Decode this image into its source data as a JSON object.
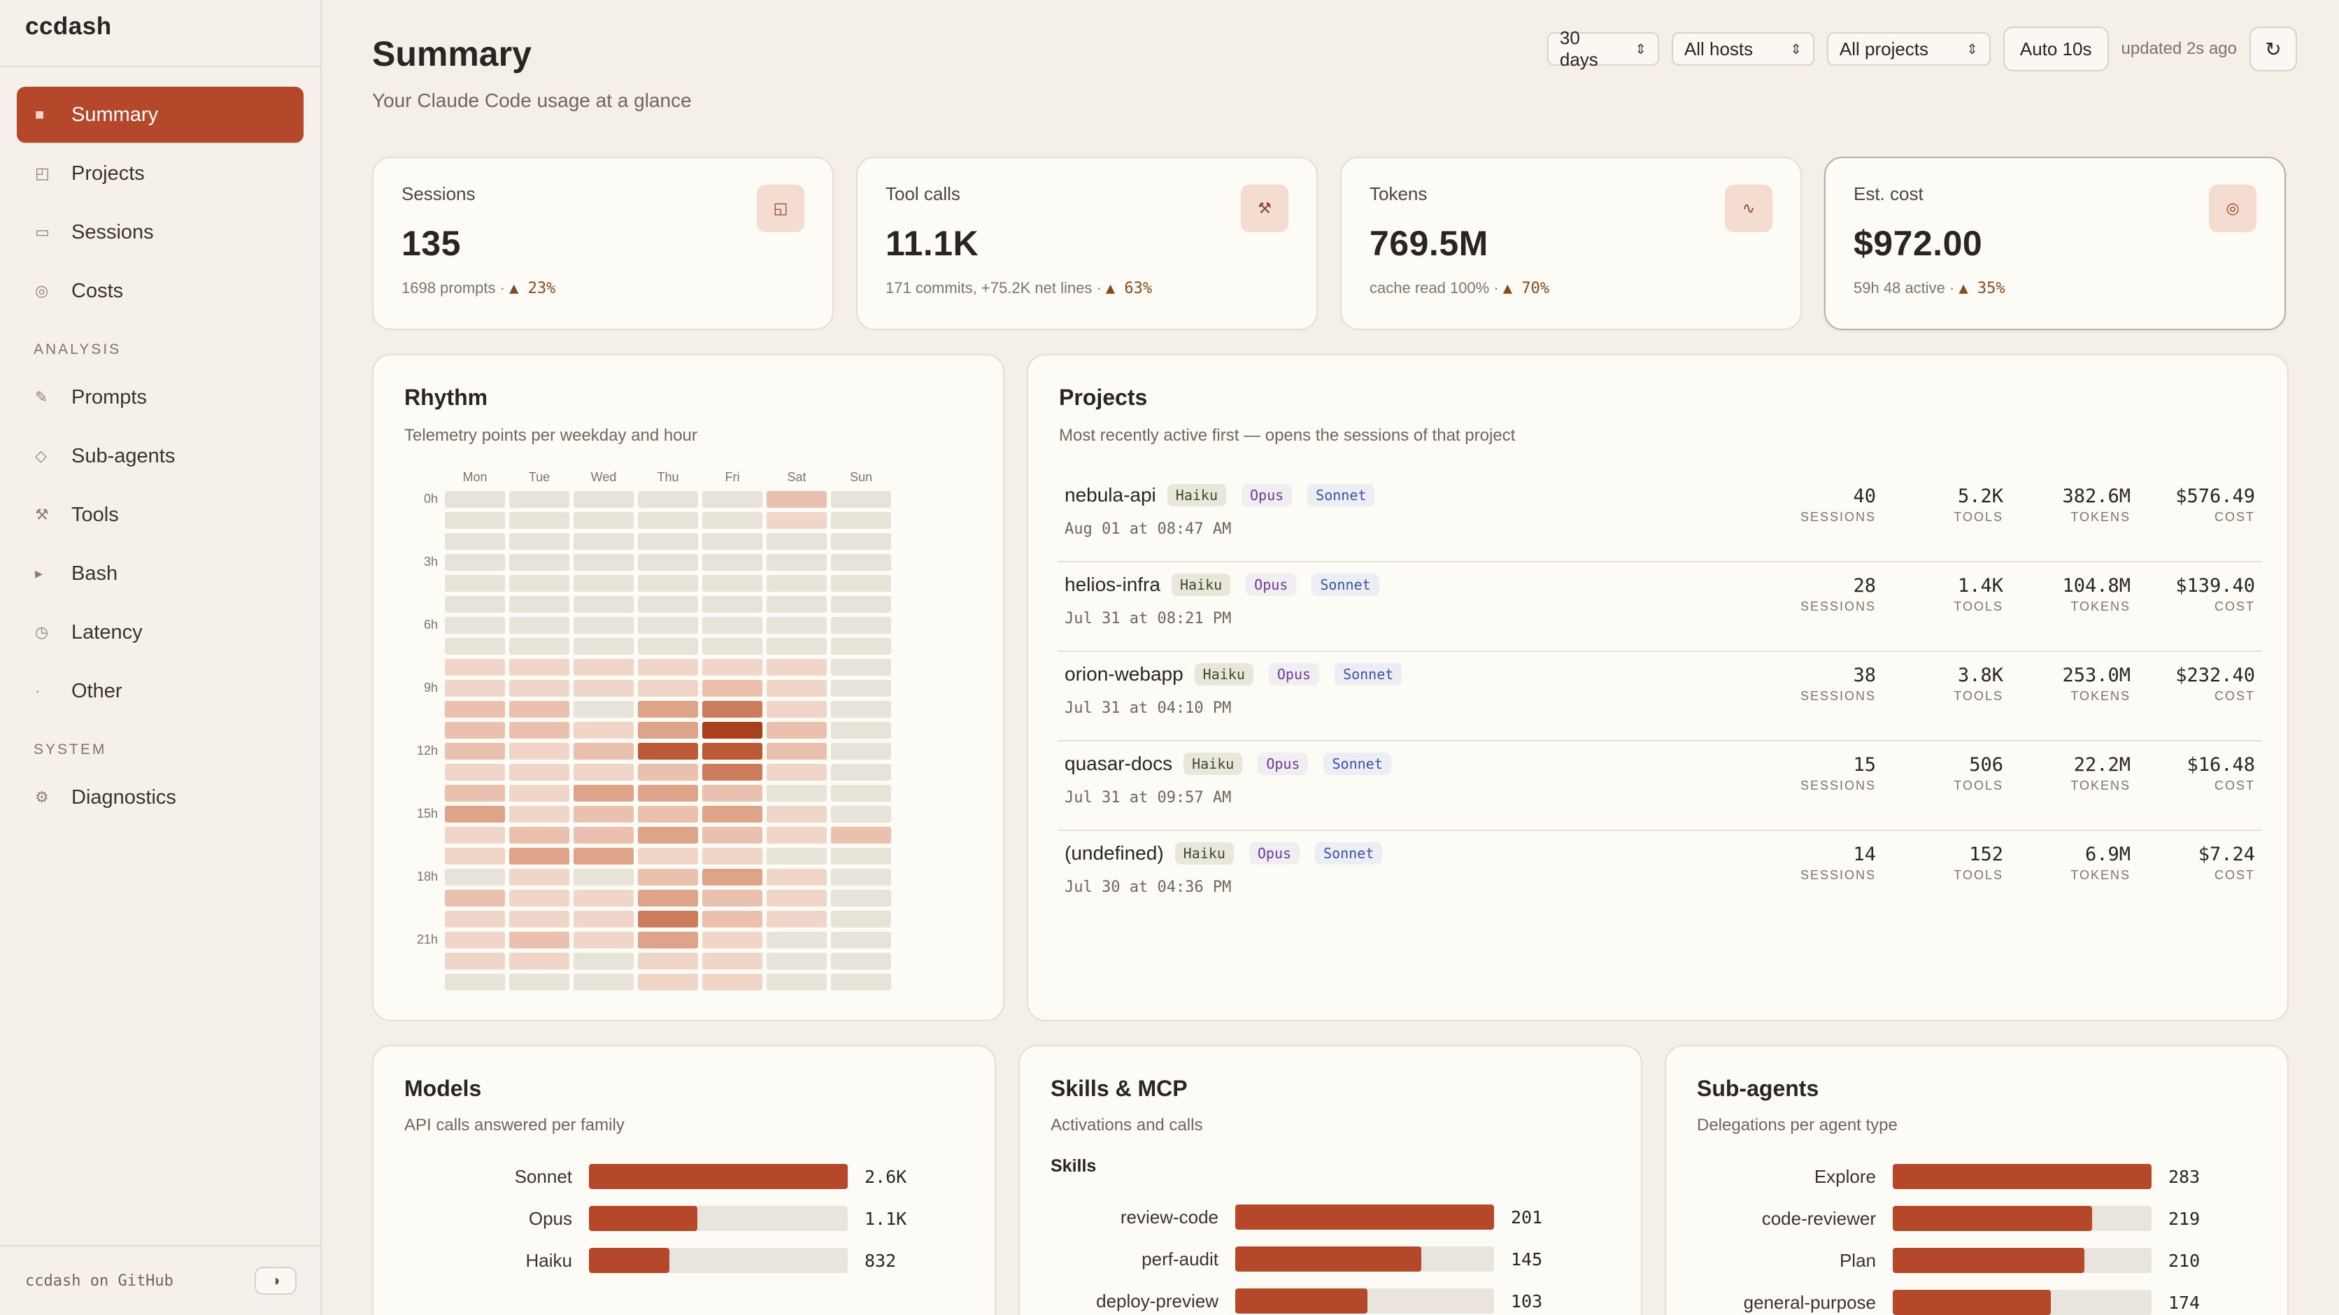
{
  "app": {
    "name": "ccdash"
  },
  "sidebar": {
    "main_items": [
      {
        "label": "Summary",
        "icon": "square-icon",
        "glyph": "■",
        "active": true
      },
      {
        "label": "Projects",
        "icon": "folder-icon",
        "glyph": "◰"
      },
      {
        "label": "Sessions",
        "icon": "window-icon",
        "glyph": "▭"
      },
      {
        "label": "Costs",
        "icon": "coin-icon",
        "glyph": "◎"
      }
    ],
    "analysis_heading": "ANALYSIS",
    "analysis_items": [
      {
        "label": "Prompts",
        "icon": "pencil-icon",
        "glyph": "✎"
      },
      {
        "label": "Sub-agents",
        "icon": "diamond-icon",
        "glyph": "◇"
      },
      {
        "label": "Tools",
        "icon": "tools-icon",
        "glyph": "⚒"
      },
      {
        "label": "Bash",
        "icon": "terminal-icon",
        "glyph": "▸"
      },
      {
        "label": "Latency",
        "icon": "clock-icon",
        "glyph": "◷"
      },
      {
        "label": "Other",
        "icon": "dot-icon",
        "glyph": "·"
      }
    ],
    "system_heading": "SYSTEM",
    "system_items": [
      {
        "label": "Diagnostics",
        "icon": "gear-icon",
        "glyph": "⚙"
      }
    ],
    "footer_link": "ccdash on GitHub",
    "theme_toggle_glyph": "◑"
  },
  "header": {
    "title": "Summary",
    "subtitle": "Your Claude Code usage at a glance",
    "range": "30 days",
    "hosts": "All hosts",
    "projects": "All projects",
    "auto_refresh": "Auto 10s",
    "updated": "updated 2s ago",
    "refresh_glyph": "↻"
  },
  "stats": [
    {
      "label": "Sessions",
      "value": "135",
      "foot": "1698 prompts · ",
      "delta": "▲ 23%",
      "icon": "window-icon",
      "glyph": "◱"
    },
    {
      "label": "Tool calls",
      "value": "11.1K",
      "foot": "171 commits, +75.2K net lines · ",
      "delta": "▲ 63%",
      "icon": "tools-icon",
      "glyph": "⚒"
    },
    {
      "label": "Tokens",
      "value": "769.5M",
      "foot": "cache read 100% · ",
      "delta": "▲ 70%",
      "icon": "wave-icon",
      "glyph": "∿"
    },
    {
      "label": "Est. cost",
      "value": "$972.00",
      "foot": "59h 48 active · ",
      "delta": "▲ 35%",
      "icon": "coin-icon",
      "glyph": "◎"
    }
  ],
  "rhythm": {
    "title": "Rhythm",
    "subtitle": "Telemetry points per weekday and hour",
    "days": [
      "Mon",
      "Tue",
      "Wed",
      "Thu",
      "Fri",
      "Sat",
      "Sun"
    ],
    "hour_labels": [
      "0h",
      "3h",
      "6h",
      "9h",
      "12h",
      "15h",
      "18h",
      "21h"
    ],
    "intensity": [
      [
        0,
        0,
        0,
        0,
        0,
        2,
        0
      ],
      [
        0,
        0,
        0,
        0,
        0,
        1,
        0
      ],
      [
        0,
        0,
        0,
        0,
        0,
        0,
        0
      ],
      [
        0,
        0,
        0,
        0,
        0,
        0,
        0
      ],
      [
        0,
        0,
        0,
        0,
        0,
        0,
        0
      ],
      [
        0,
        0,
        0,
        0,
        0,
        0,
        0
      ],
      [
        0,
        0,
        0,
        0,
        0,
        0,
        0
      ],
      [
        0,
        0,
        0,
        0,
        0,
        0,
        0
      ],
      [
        1,
        1,
        1,
        1,
        1,
        1,
        0
      ],
      [
        1,
        1,
        1,
        1,
        2,
        1,
        0
      ],
      [
        2,
        2,
        0,
        3,
        4,
        1,
        0
      ],
      [
        2,
        2,
        1,
        3,
        6,
        2,
        0
      ],
      [
        2,
        1,
        2,
        5,
        5,
        2,
        0
      ],
      [
        1,
        1,
        1,
        2,
        4,
        1,
        0
      ],
      [
        2,
        1,
        3,
        3,
        2,
        0,
        0
      ],
      [
        3,
        1,
        2,
        2,
        3,
        1,
        0
      ],
      [
        1,
        2,
        2,
        3,
        2,
        1,
        2
      ],
      [
        1,
        3,
        3,
        1,
        1,
        0,
        0
      ],
      [
        0,
        1,
        0,
        2,
        3,
        1,
        0
      ],
      [
        2,
        1,
        1,
        3,
        2,
        1,
        0
      ],
      [
        1,
        1,
        1,
        4,
        2,
        1,
        0
      ],
      [
        1,
        2,
        1,
        3,
        1,
        0,
        0
      ],
      [
        1,
        1,
        0,
        1,
        1,
        0,
        0
      ],
      [
        0,
        0,
        0,
        1,
        1,
        0,
        0
      ]
    ],
    "palette": [
      "#e8e3d9",
      "#efd6c9",
      "#e9c1ae",
      "#dea48a",
      "#cc7d5e",
      "#bc5a38",
      "#a8401e"
    ]
  },
  "projects": {
    "title": "Projects",
    "subtitle": "Most recently active first — opens the sessions of that project",
    "rows": [
      {
        "name": "nebula-api",
        "date": "Aug 01 at 08:47 AM",
        "sessions": "40",
        "tools": "5.2K",
        "tokens": "382.6M",
        "cost": "$576.49"
      },
      {
        "name": "helios-infra",
        "date": "Jul 31 at 08:21 PM",
        "sessions": "28",
        "tools": "1.4K",
        "tokens": "104.8M",
        "cost": "$139.40"
      },
      {
        "name": "orion-webapp",
        "date": "Jul 31 at 04:10 PM",
        "sessions": "38",
        "tools": "3.8K",
        "tokens": "253.0M",
        "cost": "$232.40"
      },
      {
        "name": "quasar-docs",
        "date": "Jul 31 at 09:57 AM",
        "sessions": "15",
        "tools": "506",
        "tokens": "22.2M",
        "cost": "$16.48"
      },
      {
        "name": "(undefined)",
        "date": "Jul 30 at 04:36 PM",
        "sessions": "14",
        "tools": "152",
        "tokens": "6.9M",
        "cost": "$7.24"
      }
    ],
    "chips": [
      "Haiku",
      "Opus",
      "Sonnet"
    ],
    "col_labels": {
      "sessions": "SESSIONS",
      "tools": "TOOLS",
      "tokens": "TOKENS",
      "cost": "COST"
    }
  },
  "models": {
    "title": "Models",
    "subtitle": "API calls answered per family",
    "rows": [
      {
        "label": "Sonnet",
        "value": "2.6K",
        "fraction": 1.0
      },
      {
        "label": "Opus",
        "value": "1.1K",
        "fraction": 0.42
      },
      {
        "label": "Haiku",
        "value": "832",
        "fraction": 0.31
      }
    ]
  },
  "skills": {
    "title": "Skills & MCP",
    "subtitle": "Activations and calls",
    "section": "Skills",
    "rows": [
      {
        "label": "review-code",
        "value": "201",
        "fraction": 1.0
      },
      {
        "label": "perf-audit",
        "value": "145",
        "fraction": 0.72
      },
      {
        "label": "deploy-preview",
        "value": "103",
        "fraction": 0.51
      }
    ]
  },
  "subagents": {
    "title": "Sub-agents",
    "subtitle": "Delegations per agent type",
    "rows": [
      {
        "label": "Explore",
        "value": "283",
        "fraction": 1.0
      },
      {
        "label": "code-reviewer",
        "value": "219",
        "fraction": 0.77
      },
      {
        "label": "Plan",
        "value": "210",
        "fraction": 0.74
      },
      {
        "label": "general-purpose",
        "value": "174",
        "fraction": 0.61
      }
    ]
  }
}
